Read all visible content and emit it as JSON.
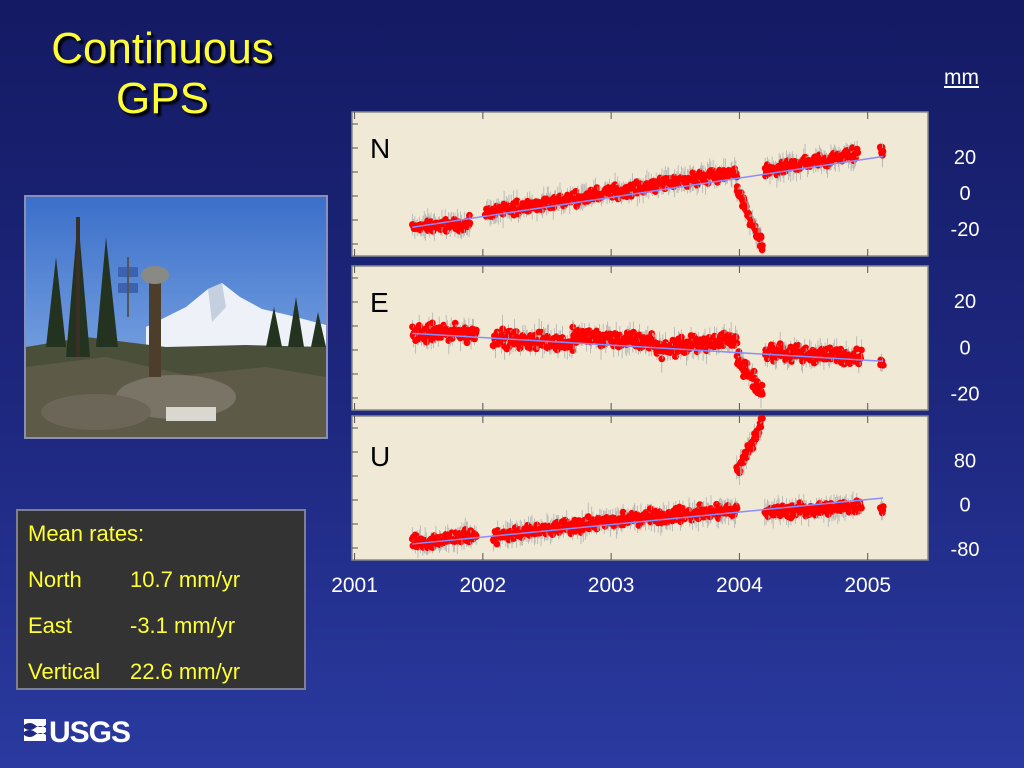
{
  "slide": {
    "title_line1": "Continuous",
    "title_line2": "GPS",
    "logo_text": "USGS"
  },
  "rates": {
    "header": "Mean rates:",
    "rows": [
      {
        "label": "North",
        "value": "10.7 mm/yr"
      },
      {
        "label": "East",
        "value": "-3.1 mm/yr"
      },
      {
        "label": "Vertical",
        "value": "22.6 mm/yr"
      }
    ]
  },
  "colors": {
    "title": "#ffff33",
    "points": "#ff0000",
    "trend": "#8c8cff",
    "panel_bg": "#efe9d6",
    "error_bars": "#b0b0b0"
  },
  "chart_data": {
    "type": "scatter",
    "unit_label": "mm",
    "x_ticks": [
      "2001",
      "2002",
      "2003",
      "2004",
      "2005"
    ],
    "x_tick_values": [
      2001,
      2002,
      2003,
      2004,
      2005
    ],
    "xlim": [
      2000.98,
      2005.47
    ],
    "panels": [
      {
        "name": "N",
        "ylim": [
          -35,
          45
        ],
        "y_ticks": [
          "20",
          "0",
          "-20"
        ],
        "y_tick_values": [
          20,
          0,
          -20
        ],
        "trend": {
          "x": [
            2001.45,
            2005.12
          ],
          "y": [
            -19,
            20.3
          ],
          "rate_mm_yr": 10.7
        },
        "segments": [
          {
            "x0": 2001.45,
            "x1": 2001.9,
            "y0": -19,
            "y1": -17
          },
          {
            "x0": 2002.02,
            "x1": 2003.35,
            "y0": -11,
            "y1": 4
          },
          {
            "x0": 2003.35,
            "x1": 2003.98,
            "y0": 5,
            "y1": 11
          },
          {
            "x0": 2003.98,
            "x1": 2004.18,
            "y0": 2,
            "y1": -30
          },
          {
            "x0": 2004.2,
            "x1": 2004.92,
            "y0": 12,
            "y1": 22
          },
          {
            "x0": 2005.1,
            "x1": 2005.12,
            "y0": 23,
            "y1": 23
          }
        ],
        "noise_mm": 3
      },
      {
        "name": "E",
        "ylim": [
          -27,
          35
        ],
        "y_ticks": [
          "20",
          "0",
          "-20"
        ],
        "y_tick_values": [
          20,
          0,
          -20
        ],
        "trend": {
          "x": [
            2001.45,
            2005.12
          ],
          "y": [
            6,
            -6
          ],
          "rate_mm_yr": -3.1
        },
        "segments": [
          {
            "x0": 2001.45,
            "x1": 2001.95,
            "y0": 6,
            "y1": 6
          },
          {
            "x0": 2002.08,
            "x1": 2002.7,
            "y0": 4,
            "y1": 2
          },
          {
            "x0": 2002.7,
            "x1": 2003.35,
            "y0": 5,
            "y1": 2
          },
          {
            "x0": 2003.35,
            "x1": 2003.98,
            "y0": -1,
            "y1": 4
          },
          {
            "x0": 2003.98,
            "x1": 2004.18,
            "y0": -5,
            "y1": -20
          },
          {
            "x0": 2004.2,
            "x1": 2004.95,
            "y0": -2,
            "y1": -4
          },
          {
            "x0": 2005.1,
            "x1": 2005.12,
            "y0": -6,
            "y1": -6
          }
        ],
        "noise_mm": 3
      },
      {
        "name": "U",
        "ylim": [
          -100,
          160
        ],
        "y_ticks": [
          "80",
          "0",
          "-80"
        ],
        "y_tick_values": [
          80,
          0,
          -80
        ],
        "trend": {
          "x": [
            2001.45,
            2005.12
          ],
          "y": [
            -71,
            12
          ],
          "rate_mm_yr": 22.6
        },
        "segments": [
          {
            "x0": 2001.45,
            "x1": 2001.95,
            "y0": -70,
            "y1": -55
          },
          {
            "x0": 2002.08,
            "x1": 2003.35,
            "y0": -58,
            "y1": -20
          },
          {
            "x0": 2003.35,
            "x1": 2003.98,
            "y0": -22,
            "y1": -10
          },
          {
            "x0": 2003.98,
            "x1": 2004.18,
            "y0": 60,
            "y1": 150
          },
          {
            "x0": 2004.2,
            "x1": 2004.95,
            "y0": -15,
            "y1": -2
          },
          {
            "x0": 2005.1,
            "x1": 2005.12,
            "y0": -5,
            "y1": -5
          }
        ],
        "noise_mm": 10
      }
    ]
  }
}
